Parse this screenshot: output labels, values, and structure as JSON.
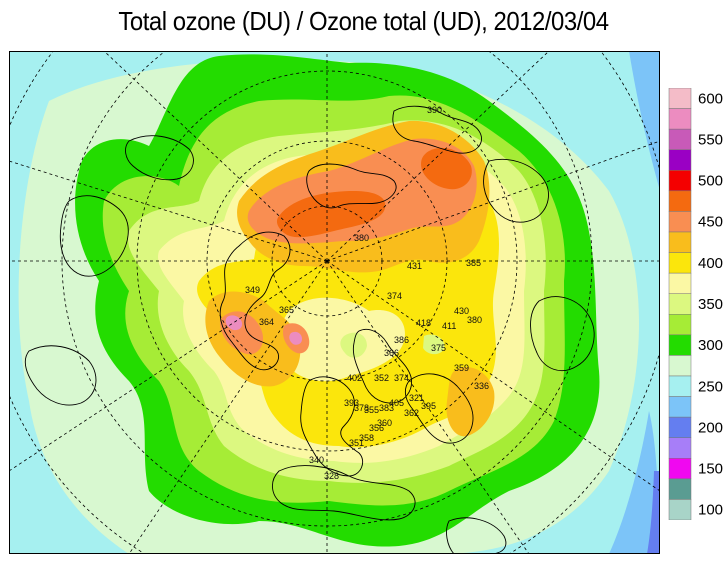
{
  "title": "Total ozone (DU) / Ozone total (UD), 2012/03/04",
  "legend": {
    "bins": [
      {
        "label": "600",
        "color": "#f4bcc8"
      },
      {
        "label": "",
        "color": "#ec8cc0"
      },
      {
        "label": "550",
        "color": "#c85ab8"
      },
      {
        "label": "",
        "color": "#9a00c4"
      },
      {
        "label": "500",
        "color": "#f40000"
      },
      {
        "label": "",
        "color": "#f46a10"
      },
      {
        "label": "450",
        "color": "#f98e52"
      },
      {
        "label": "",
        "color": "#f9bd1c"
      },
      {
        "label": "400",
        "color": "#fbe60c"
      },
      {
        "label": "",
        "color": "#fbf8a4"
      },
      {
        "label": "350",
        "color": "#dcf880"
      },
      {
        "label": "",
        "color": "#a6ec36"
      },
      {
        "label": "300",
        "color": "#23dc00"
      },
      {
        "label": "",
        "color": "#d8f8d0"
      },
      {
        "label": "250",
        "color": "#a6f0f0"
      },
      {
        "label": "",
        "color": "#7cc4f8"
      },
      {
        "label": "200",
        "color": "#647ef0"
      },
      {
        "label": "",
        "color": "#a77ef8"
      },
      {
        "label": "150",
        "color": "#f008f0"
      },
      {
        "label": "",
        "color": "#5a9c92"
      },
      {
        "label": "100",
        "color": "#a8d4c8"
      }
    ]
  },
  "stations": [
    "390",
    "380",
    "385",
    "431",
    "374",
    "418",
    "411",
    "430",
    "380",
    "375",
    "359",
    "336",
    "321",
    "374",
    "352",
    "405",
    "362",
    "395",
    "386",
    "366",
    "402",
    "378",
    "355",
    "383",
    "360",
    "356",
    "358",
    "393",
    "351",
    "340",
    "328",
    "364",
    "349",
    "365"
  ]
}
